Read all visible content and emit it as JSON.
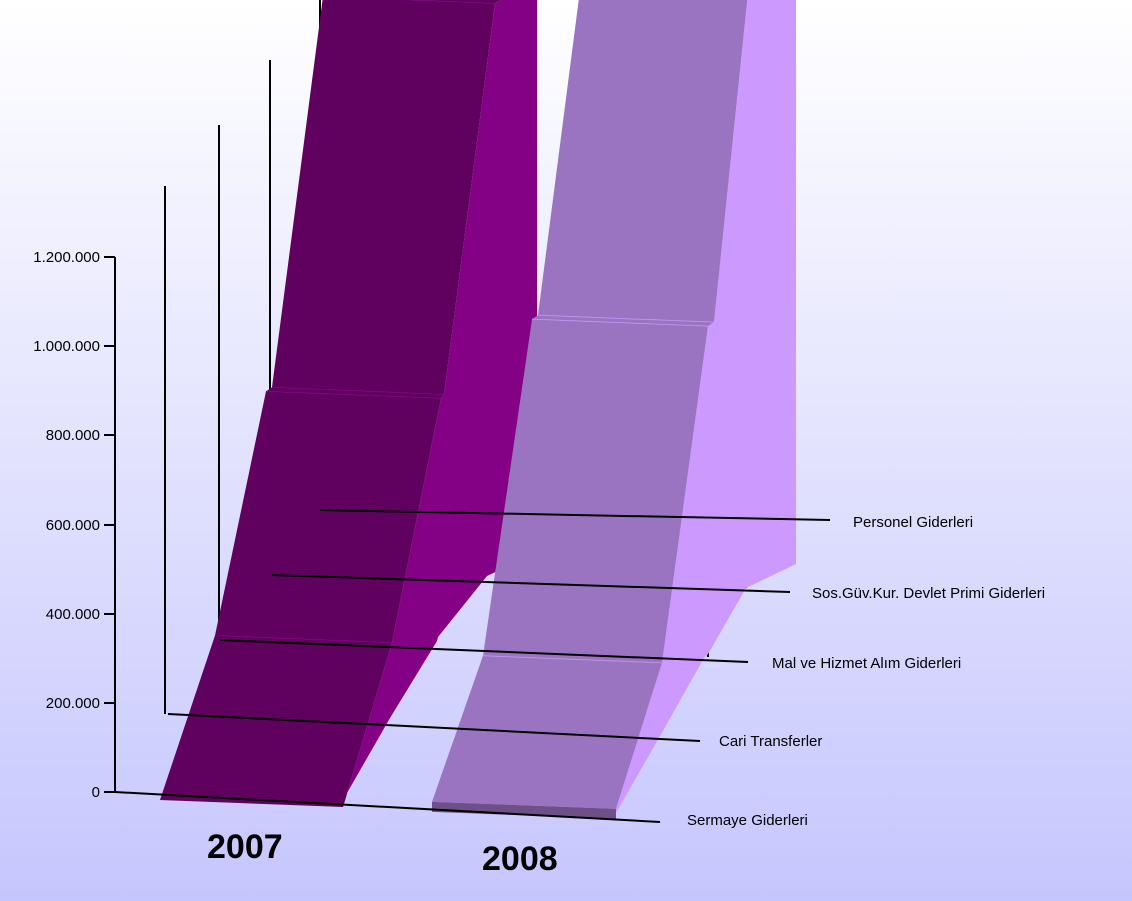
{
  "chart_data": {
    "type": "area",
    "variant": "3d-ribbon",
    "categories": [
      "Sermaye Giderleri",
      "Cari Transferler",
      "Mal ve Hizmet Alım Giderleri",
      "Sos.Güv.Kur. Devlet Primi Giderleri",
      "Personel Giderleri"
    ],
    "series": [
      {
        "name": "2007",
        "values": [
          0,
          185000,
          560000,
          560000,
          1300000
        ]
      },
      {
        "name": "2008",
        "values": [
          25000,
          180000,
          760000,
          760000,
          1480000
        ]
      }
    ],
    "y_ticks": [
      "0",
      "200.000",
      "400.000",
      "600.000",
      "800.000",
      "1.000.000",
      "1.200.000"
    ],
    "ylim": [
      0,
      1200000
    ],
    "legend": "none",
    "grid": false,
    "colors": {
      "2007_front": "#60005F",
      "2007_side": "#840085",
      "2008_front": "#9A74C0",
      "2008_side": "#CC99FF",
      "2008_base": "#6E5088",
      "background_top": "#FFFFFF",
      "background_bottom": "#C6C6FE"
    }
  }
}
